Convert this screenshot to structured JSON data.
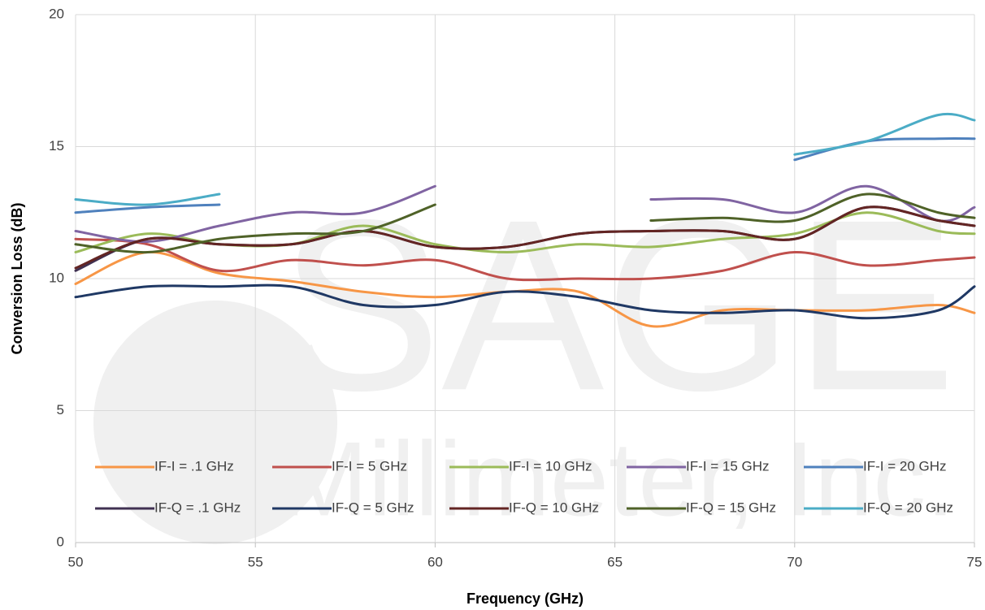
{
  "chart_data": {
    "type": "line",
    "x_label": "Frequency (GHz)",
    "y_label": "Conversion Loss (dB)",
    "watermark": [
      "SAGE",
      "Millimeter, Inc."
    ],
    "x": [
      50,
      52,
      54,
      56,
      58,
      60,
      62,
      64,
      66,
      68,
      70,
      72,
      74,
      75
    ],
    "xlim": [
      50,
      75
    ],
    "xticks": [
      50,
      55,
      60,
      65,
      70,
      75
    ],
    "ylim": [
      0,
      20
    ],
    "yticks": [
      0,
      5,
      10,
      15,
      20
    ],
    "grid": true,
    "smooth": true,
    "legend": "inside-bottom",
    "series": [
      {
        "name": "IF-I = .1 GHz",
        "color": "#f79646",
        "values": [
          9.8,
          11.0,
          10.2,
          9.9,
          9.5,
          9.3,
          9.5,
          9.5,
          8.2,
          8.8,
          8.8,
          8.8,
          9.0,
          8.7
        ]
      },
      {
        "name": "IF-I = 5 GHz",
        "color": "#c0504d",
        "values": [
          11.5,
          11.3,
          10.3,
          10.7,
          10.5,
          10.7,
          10.0,
          10.0,
          10.0,
          10.3,
          11.0,
          10.5,
          10.7,
          10.8
        ]
      },
      {
        "name": "IF-I = 10 GHz",
        "color": "#9bbb59",
        "values": [
          11.0,
          11.7,
          11.3,
          11.3,
          12.0,
          11.3,
          11.0,
          11.3,
          11.2,
          11.5,
          11.7,
          12.5,
          11.8,
          11.7
        ]
      },
      {
        "name": "IF-I = 15 GHz",
        "color": "#8064a2",
        "values": [
          11.8,
          11.4,
          12.0,
          12.5,
          12.5,
          13.5,
          null,
          null,
          13.0,
          13.0,
          12.5,
          13.5,
          12.2,
          12.7
        ]
      },
      {
        "name": "IF-I = 20 GHz",
        "color": "#4f81bd",
        "values": [
          12.5,
          12.7,
          12.8,
          null,
          null,
          null,
          null,
          null,
          null,
          null,
          14.5,
          15.2,
          15.3,
          15.3
        ]
      },
      {
        "name": "IF-Q = .1 GHz",
        "color": "#403152",
        "values": [
          10.3,
          11.5,
          11.3,
          11.3,
          11.8,
          11.2,
          11.2,
          11.7,
          11.8,
          11.8,
          11.5,
          12.7,
          12.2,
          12.0
        ]
      },
      {
        "name": "IF-Q = 5 GHz",
        "color": "#1f3864",
        "values": [
          9.3,
          9.7,
          9.7,
          9.7,
          9.0,
          9.0,
          9.5,
          9.3,
          8.8,
          8.7,
          8.8,
          8.5,
          8.8,
          9.7
        ]
      },
      {
        "name": "IF-Q = 10 GHz",
        "color": "#632523",
        "values": [
          10.4,
          11.5,
          11.3,
          11.3,
          11.8,
          11.2,
          11.2,
          11.7,
          11.8,
          11.8,
          11.5,
          12.7,
          12.2,
          12.0
        ]
      },
      {
        "name": "IF-Q = 15 GHz",
        "color": "#4f6228",
        "values": [
          11.3,
          11.0,
          11.5,
          11.7,
          11.8,
          12.8,
          null,
          null,
          12.2,
          12.3,
          12.2,
          13.2,
          12.5,
          12.3
        ]
      },
      {
        "name": "IF-Q = 20 GHz",
        "color": "#4bacc6",
        "values": [
          13.0,
          12.8,
          13.2,
          null,
          null,
          null,
          null,
          null,
          null,
          null,
          14.7,
          15.2,
          16.2,
          16.0
        ]
      }
    ]
  }
}
